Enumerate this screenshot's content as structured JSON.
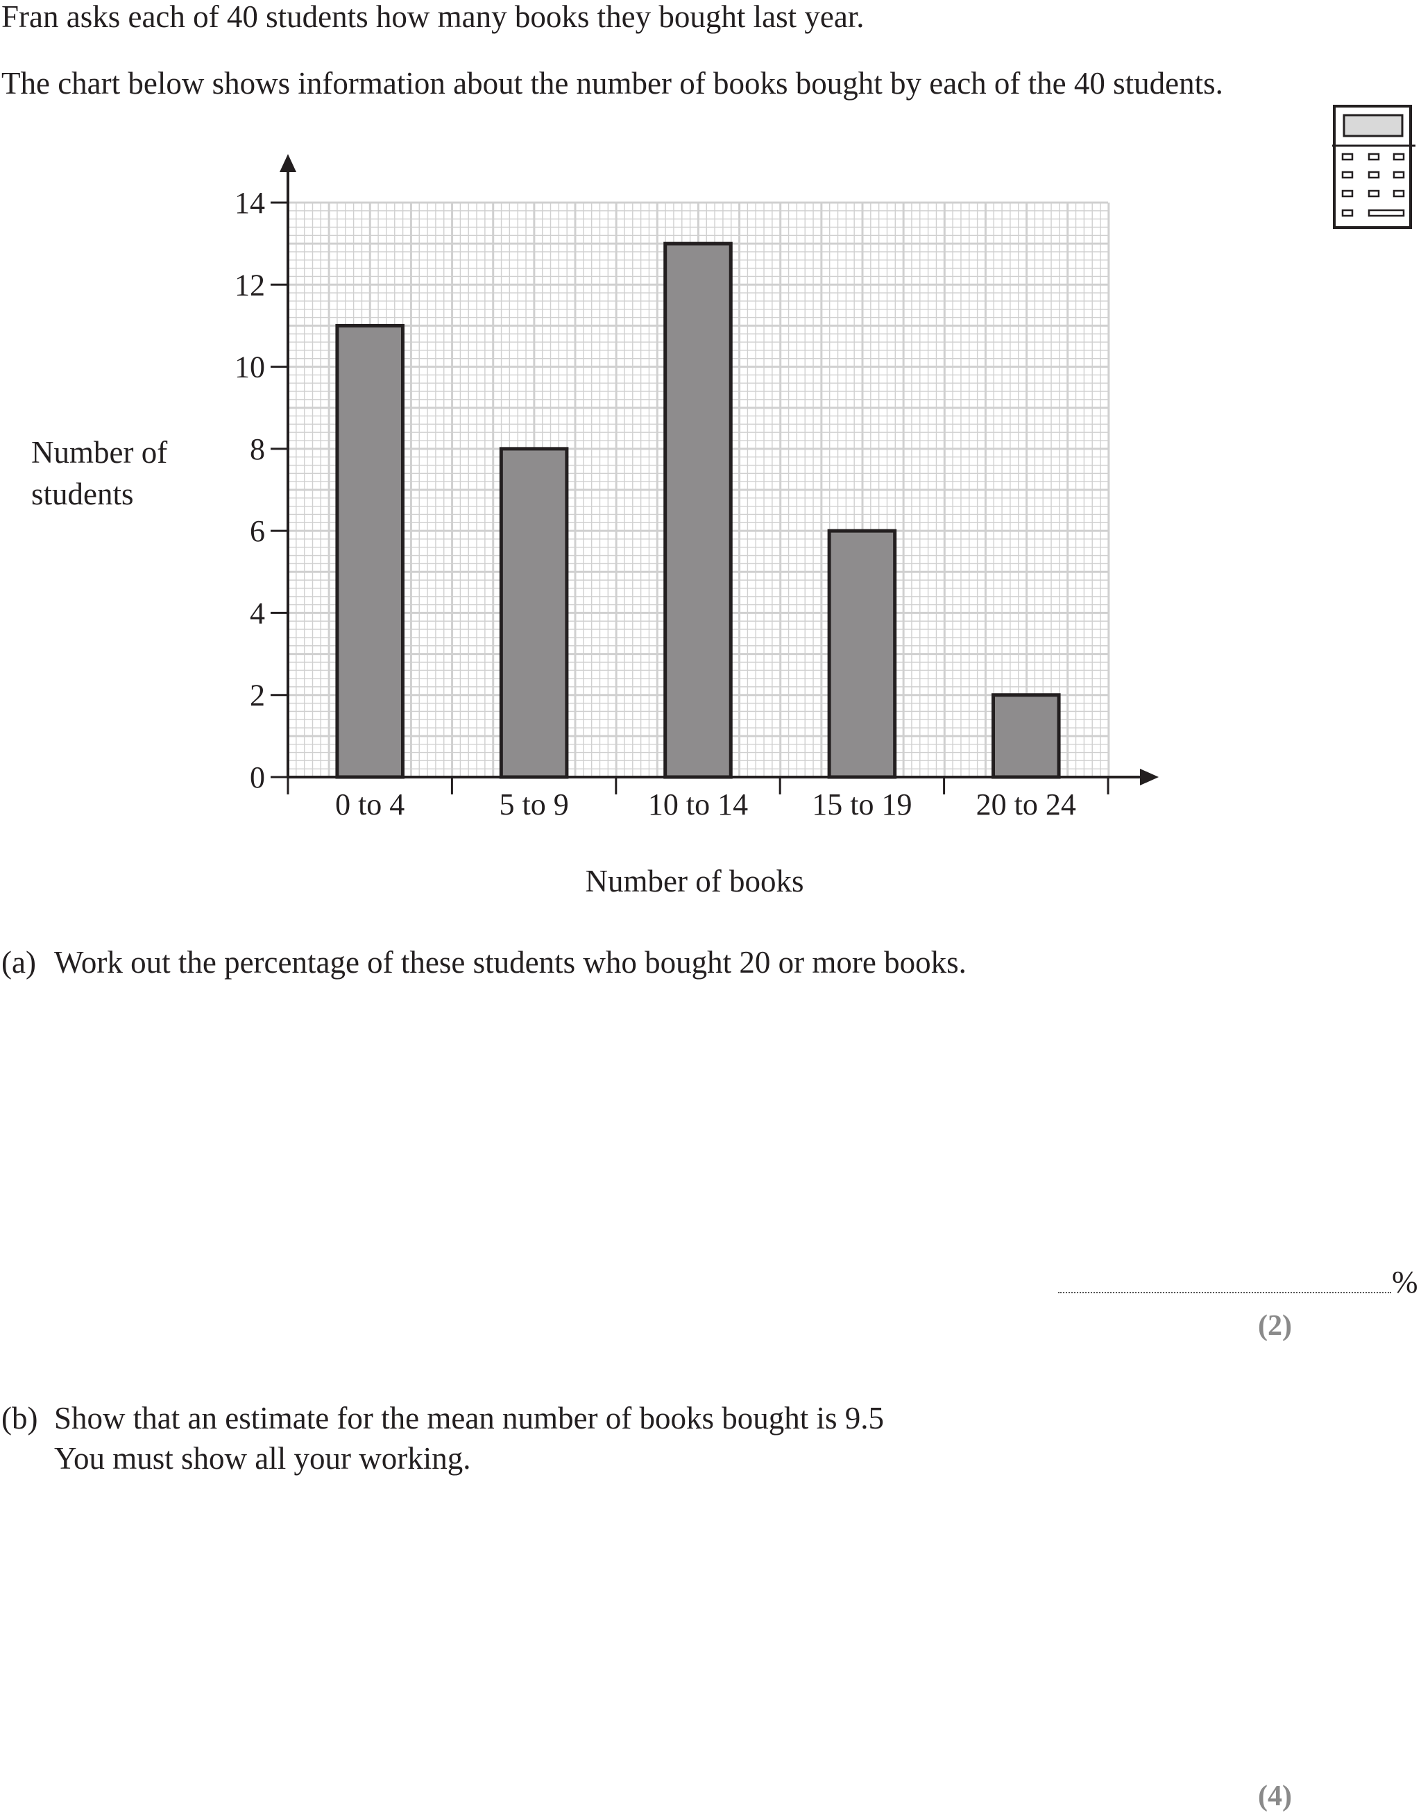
{
  "intro": {
    "line1": "Fran asks each of 40 students how many books they bought last year.",
    "line2": "The chart below shows information about the number of books bought by each of the 40 students."
  },
  "icons": {
    "calculator": "calculator-icon"
  },
  "chart_data": {
    "type": "bar",
    "categories": [
      "0 to 4",
      "5 to 9",
      "10 to 14",
      "15 to 19",
      "20 to 24"
    ],
    "values": [
      11,
      8,
      13,
      6,
      2
    ],
    "xlabel": "Number of books",
    "ylabel": "Number of students",
    "ylim": [
      0,
      14
    ],
    "yticks": [
      "0",
      "2",
      "4",
      "6",
      "8",
      "10",
      "12",
      "14"
    ],
    "grid": true,
    "bar_color": "#8e8c8d"
  },
  "question_a": {
    "number": "(a)",
    "text": "Work out the percentage of these students who bought 20 or more books.",
    "answer_unit": "%",
    "marks": "(2)"
  },
  "question_b": {
    "number": "(b)",
    "text_line1": "Show that an estimate for the mean number of books bought is 9.5",
    "text_line2": "You must show all your working.",
    "marks": "(4)"
  }
}
